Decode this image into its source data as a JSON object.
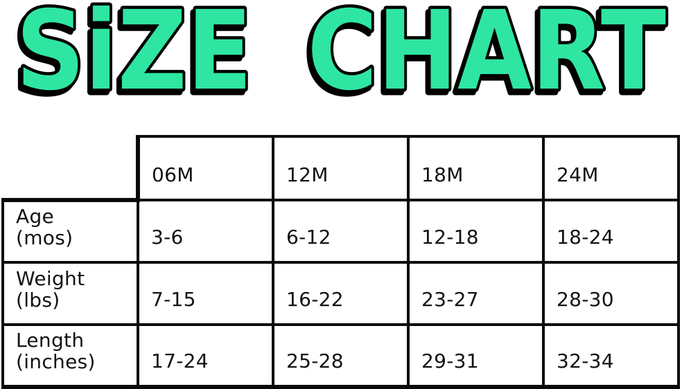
{
  "title": {
    "text": "SiZE CHART",
    "fill": "#2EE6A2",
    "outline": "#000000"
  },
  "colors": {
    "background": "#ffffff",
    "table_border": "#0a0a0a",
    "table_text": "#121212"
  },
  "chart_data": {
    "type": "table",
    "title": "SIZE CHART",
    "columns": [
      "06M",
      "12M",
      "18M",
      "24M"
    ],
    "rows": [
      {
        "label": "Age (mos)",
        "values": [
          "3-6",
          "6-12",
          "12-18",
          "18-24"
        ]
      },
      {
        "label": "Weight (lbs)",
        "values": [
          "7-15",
          "16-22",
          "23-27",
          "28-30"
        ]
      },
      {
        "label": "Length (inches)",
        "values": [
          "17-24",
          "25-28",
          "29-31",
          "32-34"
        ]
      }
    ]
  },
  "table": {
    "headers": [
      "06M",
      "12M",
      "18M",
      "24M"
    ],
    "rows": [
      {
        "label_line1": "Age",
        "label_line2": "(mos)",
        "values": [
          "3-6",
          "6-12",
          "12-18",
          "18-24"
        ]
      },
      {
        "label_line1": "Weight",
        "label_line2": "(lbs)",
        "values": [
          "7-15",
          "16-22",
          "23-27",
          "28-30"
        ]
      },
      {
        "label_line1": "Length",
        "label_line2": "(inches)",
        "values": [
          "17-24",
          "25-28",
          "29-31",
          "32-34"
        ]
      }
    ]
  }
}
